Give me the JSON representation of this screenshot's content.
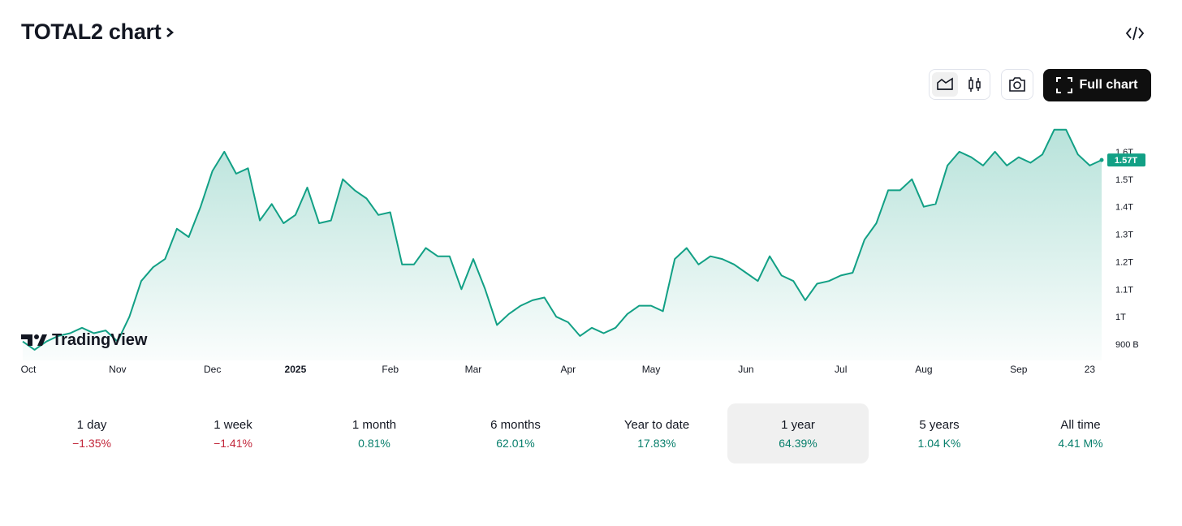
{
  "header": {
    "title": "TOTAL2 chart"
  },
  "watermark": "TradingView",
  "full_chart_button": "Full chart",
  "chart_data": {
    "type": "line",
    "categories": [
      "Oct",
      null,
      null,
      null,
      null,
      null,
      null,
      null,
      "Nov",
      null,
      null,
      null,
      null,
      null,
      null,
      null,
      "Dec",
      null,
      null,
      null,
      null,
      null,
      null,
      "2025",
      null,
      null,
      null,
      null,
      null,
      null,
      null,
      "Feb",
      null,
      null,
      null,
      null,
      null,
      null,
      "Mar",
      null,
      null,
      null,
      null,
      null,
      null,
      null,
      "Apr",
      null,
      null,
      null,
      null,
      null,
      null,
      "May",
      null,
      null,
      null,
      null,
      null,
      null,
      null,
      "Jun",
      null,
      null,
      null,
      null,
      null,
      null,
      null,
      "Jul",
      null,
      null,
      null,
      null,
      null,
      null,
      "Aug",
      null,
      null,
      null,
      null,
      null,
      null,
      null,
      "Sep",
      null,
      null,
      null,
      null,
      null,
      "23",
      null
    ],
    "series": [
      {
        "name": "TOTAL2",
        "color": "#12a085",
        "values": [
          0.91,
          0.88,
          0.91,
          0.93,
          0.94,
          0.96,
          0.94,
          0.95,
          0.91,
          1.0,
          1.13,
          1.18,
          1.21,
          1.32,
          1.29,
          1.4,
          1.53,
          1.6,
          1.52,
          1.54,
          1.35,
          1.41,
          1.34,
          1.37,
          1.47,
          1.34,
          1.35,
          1.5,
          1.46,
          1.43,
          1.37,
          1.38,
          1.19,
          1.19,
          1.25,
          1.22,
          1.22,
          1.1,
          1.21,
          1.1,
          0.97,
          1.01,
          1.04,
          1.06,
          1.07,
          1.0,
          0.98,
          0.93,
          0.96,
          0.94,
          0.96,
          1.01,
          1.04,
          1.04,
          1.02,
          1.21,
          1.25,
          1.19,
          1.22,
          1.21,
          1.19,
          1.16,
          1.13,
          1.22,
          1.15,
          1.13,
          1.06,
          1.12,
          1.13,
          1.15,
          1.16,
          1.28,
          1.34,
          1.46,
          1.46,
          1.5,
          1.4,
          1.41,
          1.55,
          1.6,
          1.58,
          1.55,
          1.6,
          1.55,
          1.58,
          1.56,
          1.59,
          1.68,
          1.68,
          1.59,
          1.55,
          1.57
        ]
      }
    ],
    "last_value": 1.57,
    "last_label": "1.57T",
    "ylim": [
      0.853,
      1.709
    ],
    "yticks": [
      {
        "value": 0.9,
        "label": "900 B"
      },
      {
        "value": 1,
        "label": "1T"
      },
      {
        "value": 1.1,
        "label": "1.1T"
      },
      {
        "value": 1.2,
        "label": "1.2T"
      },
      {
        "value": 1.3,
        "label": "1.3T"
      },
      {
        "value": 1.4,
        "label": "1.4T"
      },
      {
        "value": 1.5,
        "label": "1.5T"
      },
      {
        "value": 1.6,
        "label": "1.6T"
      }
    ],
    "grid": false
  },
  "periods": [
    {
      "label": "1 day",
      "change": "−1.35%"
    },
    {
      "label": "1 week",
      "change": "−1.41%"
    },
    {
      "label": "1 month",
      "change": "0.81%"
    },
    {
      "label": "6 months",
      "change": "62.01%"
    },
    {
      "label": "Year to date",
      "change": "17.83%"
    },
    {
      "label": "1 year",
      "change": "64.39%"
    },
    {
      "label": "5 years",
      "change": "1.04 K%"
    },
    {
      "label": "All time",
      "change": "4.41 M%"
    }
  ]
}
